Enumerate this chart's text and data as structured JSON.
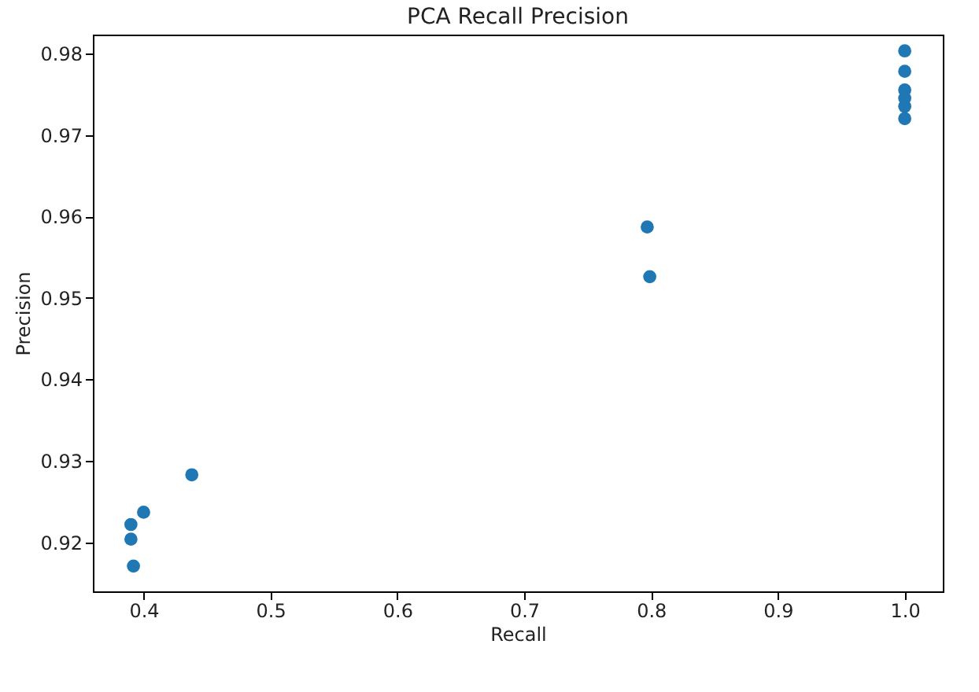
{
  "chart_data": {
    "type": "scatter",
    "title": "PCA Recall Precision",
    "xlabel": "Recall",
    "ylabel": "Precision",
    "x": [
      0.392,
      0.39,
      0.39,
      0.4,
      0.438,
      0.797,
      0.799,
      1.0,
      1.0,
      1.0,
      1.0,
      1.0,
      1.0
    ],
    "series": [
      {
        "color": "#1f77b4",
        "values": [
          0.9171,
          0.9204,
          0.9222,
          0.9237,
          0.9283,
          0.9587,
          0.9526,
          0.9803,
          0.9778,
          0.9755,
          0.9745,
          0.9735,
          0.972
        ]
      }
    ],
    "xlim": [
      0.36,
      1.03
    ],
    "ylim": [
      0.914,
      0.9823
    ],
    "xticks": [
      {
        "value": 0.4,
        "label": "0.4"
      },
      {
        "value": 0.5,
        "label": "0.5"
      },
      {
        "value": 0.6,
        "label": "0.6"
      },
      {
        "value": 0.7,
        "label": "0.7"
      },
      {
        "value": 0.8,
        "label": "0.8"
      },
      {
        "value": 0.9,
        "label": "0.9"
      },
      {
        "value": 1.0,
        "label": "1.0"
      }
    ],
    "yticks": [
      0.92,
      0.93,
      0.94,
      0.95,
      0.96,
      0.97,
      0.98
    ],
    "marker": "circle",
    "grid": false
  }
}
